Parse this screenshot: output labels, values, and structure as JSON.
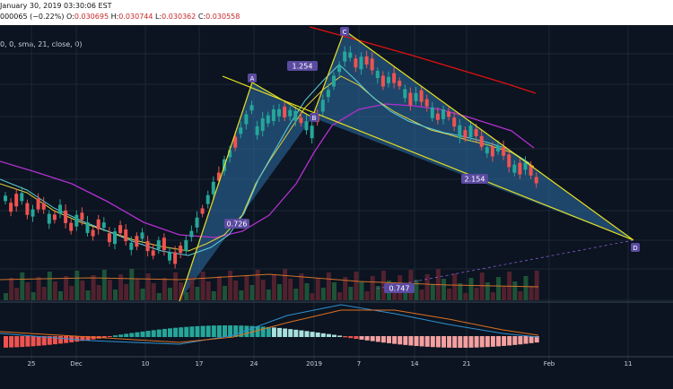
{
  "header": {
    "date_text": "January 30, 2019 03:30:06 EST",
    "change_text": "000065 (−0.22%)",
    "o_label": "O:",
    "o_value": "0.030695",
    "h_label": "H:",
    "h_value": "0.030744",
    "l_label": "L:",
    "l_value": "0.030362",
    "c_label": "C:",
    "c_value": "0.030558",
    "study_text": "0, 0, sma, 21, close, 0)"
  },
  "chart_data": {
    "type": "candlestick",
    "x_tick_labels": [
      "25",
      "Dec",
      "10",
      "17",
      "24",
      "2019",
      "7",
      "14",
      "21",
      "Feb",
      "11"
    ],
    "pattern_points": [
      {
        "label": "A"
      },
      {
        "label": "B"
      },
      {
        "label": "C"
      },
      {
        "label": "D"
      }
    ],
    "ratios": [
      "1.254",
      "0.726",
      "2.154",
      "0.747"
    ],
    "colors": {
      "up": "#26a69a",
      "down": "#ef5350",
      "pattern_fill": "#2f6fa8",
      "pattern_line": "#e8e020",
      "ma_purple": "#b42fd0",
      "ma_red": "#e01010",
      "ma_yellow": "#e6cf3a",
      "ma_cyan": "#5fd0d8"
    }
  }
}
